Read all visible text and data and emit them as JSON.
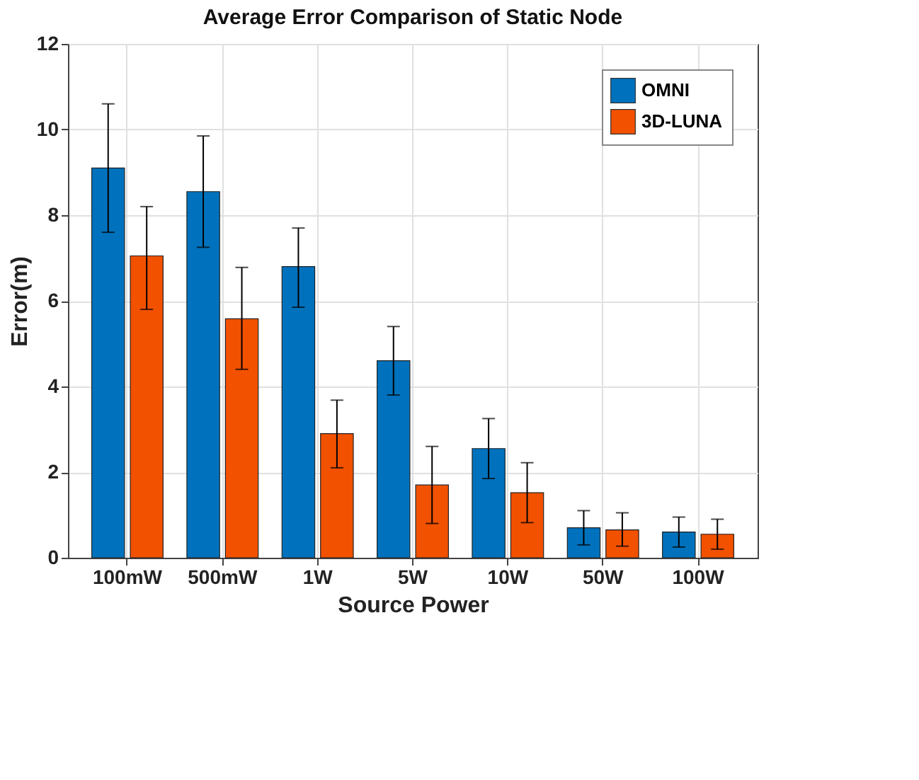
{
  "chart_data": {
    "type": "bar",
    "title": "Average Error Comparison of Static Node",
    "xlabel": "Source Power",
    "ylabel": "Error(m)",
    "categories": [
      "100mW",
      "500mW",
      "1W",
      "5W",
      "10W",
      "50W",
      "100W"
    ],
    "series": [
      {
        "name": "OMNI",
        "color": "#0072bd",
        "values": [
          9.1,
          8.55,
          6.8,
          4.6,
          2.55,
          0.7,
          0.6
        ],
        "errors": [
          [
            7.6,
            10.6
          ],
          [
            7.25,
            9.85
          ],
          [
            5.85,
            7.7
          ],
          [
            3.8,
            5.4
          ],
          [
            1.85,
            3.25
          ],
          [
            0.3,
            1.1
          ],
          [
            0.25,
            0.95
          ]
        ]
      },
      {
        "name": "3D-LUNA",
        "color": "#f25100",
        "values": [
          7.05,
          5.58,
          2.9,
          1.7,
          1.52,
          0.65,
          0.55
        ],
        "errors": [
          [
            5.8,
            8.2
          ],
          [
            4.4,
            6.78
          ],
          [
            2.1,
            3.68
          ],
          [
            0.8,
            2.6
          ],
          [
            0.82,
            2.22
          ],
          [
            0.27,
            1.05
          ],
          [
            0.2,
            0.9
          ]
        ]
      }
    ],
    "ylim": [
      0,
      12
    ],
    "yticks": [
      0,
      2,
      4,
      6,
      8,
      10,
      12
    ],
    "grid": true,
    "legend": "top right"
  }
}
